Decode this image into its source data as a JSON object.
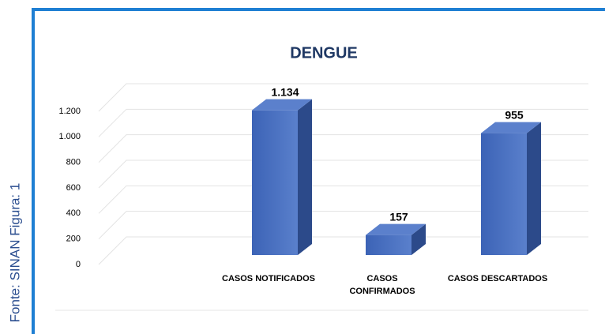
{
  "source": "Fonte: SINAN Figura: 1",
  "chart_data": {
    "type": "bar3d",
    "title": "DENGUE",
    "categories": [
      "CASOS NOTIFICADOS",
      "CASOS CONFIRMADOS",
      "CASOS DESCARTADOS"
    ],
    "values": [
      1134,
      157,
      955
    ],
    "value_labels": [
      "1.134",
      "157",
      "955"
    ],
    "color": "#4a6fc0",
    "ylim": [
      0,
      1200
    ],
    "yticks": [
      0,
      200,
      400,
      600,
      800,
      {
        "value": 1000,
        "label": "1.000"
      },
      {
        "value": 1200,
        "label": "1.200"
      }
    ],
    "grid": true
  }
}
